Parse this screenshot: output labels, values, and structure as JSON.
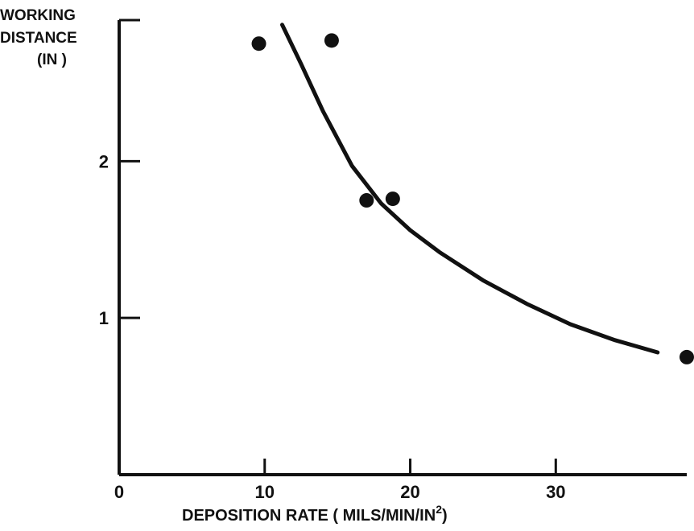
{
  "chart_data": {
    "type": "scatter",
    "title": "",
    "xlabel": "DEPOSITION  RATE ( MILS/MIN/IN",
    "xlabel_superscript": "2",
    "xlabel_close": ")",
    "ylabel_lines": [
      "WORKING",
      "DISTANCE",
      "(IN )"
    ],
    "xlim": [
      0,
      39
    ],
    "ylim": [
      0,
      2.9
    ],
    "x_ticks": [
      {
        "value": 0,
        "label": "0"
      },
      {
        "value": 10,
        "label": "10"
      },
      {
        "value": 20,
        "label": "20"
      },
      {
        "value": 30,
        "label": "30"
      }
    ],
    "y_ticks": [
      {
        "value": 1,
        "label": "1"
      },
      {
        "value": 2,
        "label": "2"
      },
      {
        "value": 2.9,
        "label": ""
      }
    ],
    "series": [
      {
        "kind": "points",
        "points": [
          {
            "x": 9.6,
            "y": 2.75
          },
          {
            "x": 14.6,
            "y": 2.77
          },
          {
            "x": 17.0,
            "y": 1.75
          },
          {
            "x": 18.8,
            "y": 1.76
          },
          {
            "x": 39.0,
            "y": 0.75
          }
        ]
      },
      {
        "kind": "curve",
        "points": [
          {
            "x": 11.2,
            "y": 2.87
          },
          {
            "x": 12.5,
            "y": 2.62
          },
          {
            "x": 14.0,
            "y": 2.32
          },
          {
            "x": 16.0,
            "y": 1.97
          },
          {
            "x": 18.0,
            "y": 1.73
          },
          {
            "x": 20.0,
            "y": 1.56
          },
          {
            "x": 22.0,
            "y": 1.42
          },
          {
            "x": 25.0,
            "y": 1.24
          },
          {
            "x": 28.0,
            "y": 1.09
          },
          {
            "x": 31.0,
            "y": 0.96
          },
          {
            "x": 34.0,
            "y": 0.86
          },
          {
            "x": 37.0,
            "y": 0.78
          }
        ]
      }
    ],
    "grid": false,
    "colors": {
      "ink": "#111111",
      "background": "#ffffff"
    }
  }
}
